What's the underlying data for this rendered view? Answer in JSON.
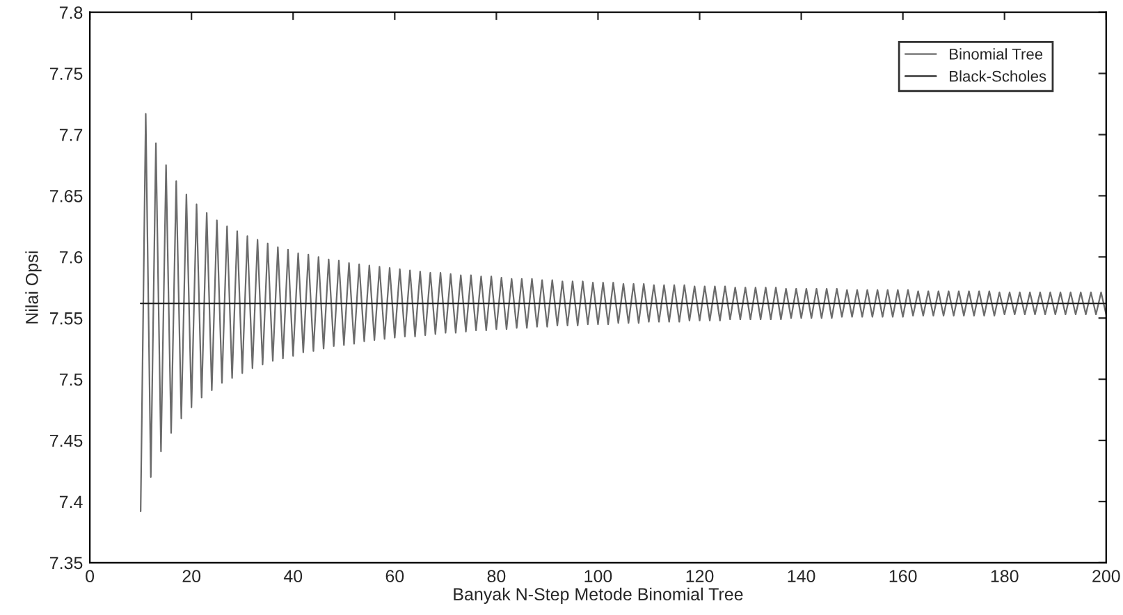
{
  "chart_data": {
    "type": "line",
    "xlabel": "Banyak N-Step Metode Binomial Tree",
    "ylabel": "Nilai Opsi",
    "xlim": [
      0,
      200
    ],
    "xticks": [
      0,
      20,
      40,
      60,
      80,
      100,
      120,
      140,
      160,
      180,
      200
    ],
    "ylim": [
      7.35,
      7.8
    ],
    "yticks": [
      7.35,
      7.4,
      7.45,
      7.5,
      7.55,
      7.6,
      7.65,
      7.7,
      7.75,
      7.8
    ],
    "grid": false,
    "legend": "top right",
    "series": [
      {
        "name": "Binomial Tree",
        "color": "#6b6b6b",
        "x": [
          10,
          11,
          12,
          13,
          14,
          15,
          16,
          17,
          18,
          19,
          20,
          21,
          22,
          23,
          24,
          25,
          26,
          27,
          28,
          29,
          30,
          31,
          32,
          33,
          34,
          35,
          36,
          37,
          38,
          39,
          40,
          41,
          42,
          43,
          44,
          45,
          46,
          47,
          48,
          49,
          50,
          51,
          52,
          53,
          54,
          55,
          56,
          57,
          58,
          59,
          60,
          61,
          62,
          63,
          64,
          65,
          66,
          67,
          68,
          69,
          70,
          71,
          72,
          73,
          74,
          75,
          76,
          77,
          78,
          79,
          80,
          81,
          82,
          83,
          84,
          85,
          86,
          87,
          88,
          89,
          90,
          91,
          92,
          93,
          94,
          95,
          96,
          97,
          98,
          99,
          100,
          101,
          102,
          103,
          104,
          105,
          106,
          107,
          108,
          109,
          110,
          111,
          112,
          113,
          114,
          115,
          116,
          117,
          118,
          119,
          120,
          121,
          122,
          123,
          124,
          125,
          126,
          127,
          128,
          129,
          130,
          131,
          132,
          133,
          134,
          135,
          136,
          137,
          138,
          139,
          140,
          141,
          142,
          143,
          144,
          145,
          146,
          147,
          148,
          149,
          150,
          151,
          152,
          153,
          154,
          155,
          156,
          157,
          158,
          159,
          160,
          161,
          162,
          163,
          164,
          165,
          166,
          167,
          168,
          169,
          170,
          171,
          172,
          173,
          174,
          175,
          176,
          177,
          178,
          179,
          180,
          181,
          182,
          183,
          184,
          185,
          186,
          187,
          188,
          189,
          190,
          191,
          192,
          193,
          194,
          195,
          196,
          197,
          198,
          199,
          200
        ],
        "values": [
          7.392,
          7.717,
          7.42,
          7.693,
          7.441,
          7.675,
          7.456,
          7.662,
          7.468,
          7.651,
          7.477,
          7.643,
          7.485,
          7.636,
          7.491,
          7.63,
          7.497,
          7.625,
          7.501,
          7.621,
          7.505,
          7.617,
          7.509,
          7.614,
          7.512,
          7.611,
          7.515,
          7.608,
          7.517,
          7.606,
          7.519,
          7.603,
          7.522,
          7.602,
          7.523,
          7.6,
          7.525,
          7.598,
          7.527,
          7.597,
          7.528,
          7.595,
          7.529,
          7.594,
          7.531,
          7.593,
          7.532,
          7.592,
          7.533,
          7.591,
          7.534,
          7.59,
          7.535,
          7.589,
          7.535,
          7.588,
          7.536,
          7.587,
          7.537,
          7.587,
          7.538,
          7.586,
          7.538,
          7.585,
          7.539,
          7.585,
          7.54,
          7.584,
          7.54,
          7.584,
          7.541,
          7.583,
          7.541,
          7.582,
          7.542,
          7.582,
          7.542,
          7.582,
          7.543,
          7.581,
          7.543,
          7.581,
          7.544,
          7.58,
          7.544,
          7.58,
          7.544,
          7.58,
          7.545,
          7.579,
          7.545,
          7.579,
          7.545,
          7.579,
          7.546,
          7.578,
          7.546,
          7.578,
          7.546,
          7.578,
          7.547,
          7.577,
          7.547,
          7.577,
          7.547,
          7.577,
          7.547,
          7.577,
          7.548,
          7.576,
          7.548,
          7.576,
          7.548,
          7.576,
          7.548,
          7.576,
          7.549,
          7.575,
          7.549,
          7.575,
          7.549,
          7.575,
          7.549,
          7.575,
          7.549,
          7.575,
          7.549,
          7.574,
          7.55,
          7.574,
          7.55,
          7.574,
          7.55,
          7.574,
          7.55,
          7.574,
          7.55,
          7.574,
          7.551,
          7.573,
          7.551,
          7.573,
          7.551,
          7.573,
          7.551,
          7.573,
          7.551,
          7.573,
          7.551,
          7.573,
          7.551,
          7.573,
          7.552,
          7.572,
          7.552,
          7.572,
          7.552,
          7.572,
          7.552,
          7.572,
          7.552,
          7.572,
          7.552,
          7.572,
          7.552,
          7.572,
          7.552,
          7.572,
          7.552,
          7.571,
          7.553,
          7.571,
          7.553,
          7.571,
          7.553,
          7.571,
          7.553,
          7.571,
          7.553,
          7.571,
          7.553,
          7.571,
          7.553,
          7.571,
          7.553,
          7.571,
          7.553,
          7.571,
          7.553,
          7.571,
          7.553
        ]
      },
      {
        "name": "Black-Scholes",
        "color": "#222222",
        "x": [
          10,
          200
        ],
        "values": [
          7.562,
          7.562
        ]
      }
    ]
  }
}
